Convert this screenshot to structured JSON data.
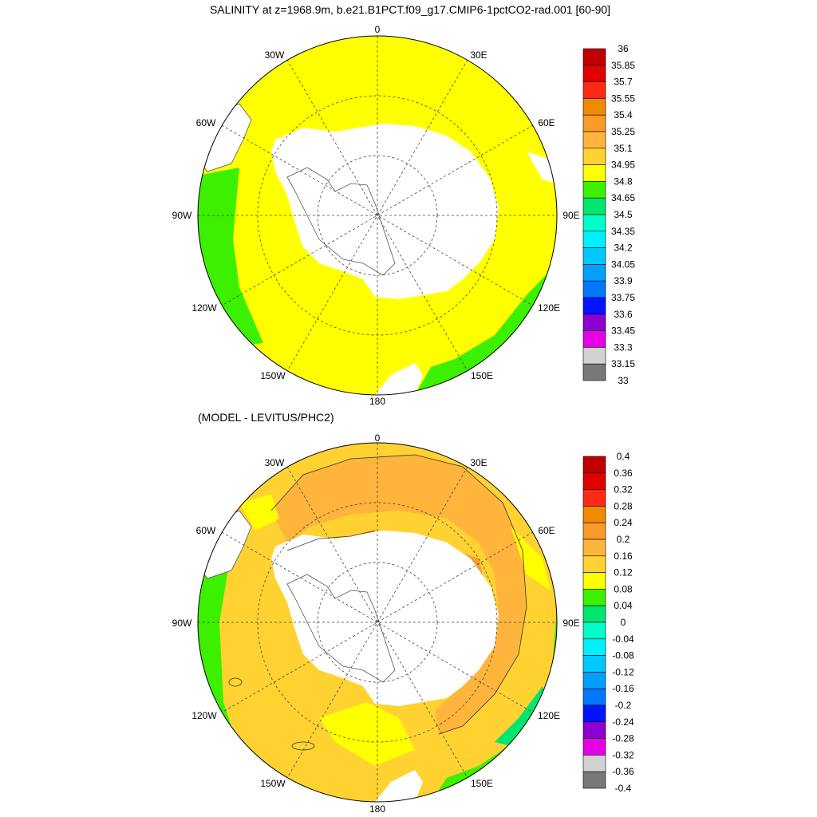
{
  "panels": [
    {
      "id": "salinity",
      "title": "SALINITY at z=1968.9m, b.e21.B1PCT.f09_g17.CMIP6-1pctCO2-rad.001 [60-90]",
      "lon_labels": {
        "n": "0",
        "ne": "30E",
        "e60": "60E",
        "e90": "90E",
        "e120": "120E",
        "e150": "150E",
        "s": "180",
        "w150": "150W",
        "w120": "120W",
        "w90": "90W",
        "w60": "60W",
        "w30": "30W"
      },
      "colorbar": {
        "labels": [
          "36",
          "35.85",
          "35.7",
          "35.55",
          "35.4",
          "35.25",
          "35.1",
          "34.95",
          "34.8",
          "34.65",
          "34.5",
          "34.35",
          "34.2",
          "34.05",
          "33.9",
          "33.75",
          "33.6",
          "33.45",
          "33.3",
          "33.15",
          "33"
        ],
        "colors": [
          "#c00000",
          "#e00000",
          "#ff2a14",
          "#f08a00",
          "#fa9a28",
          "#ffb43c",
          "#ffd232",
          "#ffff00",
          "#3cf000",
          "#00e66e",
          "#00ffc8",
          "#00f0ff",
          "#00c8ff",
          "#00a0ff",
          "#0078ff",
          "#0014ff",
          "#8c00d2",
          "#e600e6",
          "#d2d2d2",
          "#787878"
        ]
      },
      "field": {
        "open_ocean": "#ffff00",
        "margin": "#3cf000",
        "land": "#ffffff"
      }
    },
    {
      "id": "difference",
      "title": "(MODEL - LEVITUS/PHC2)",
      "lon_labels": {
        "n": "0",
        "ne": "30E",
        "e60": "60E",
        "e90": "90E",
        "e120": "120E",
        "e150": "150E",
        "s": "180",
        "w150": "150W",
        "w120": "120W",
        "w90": "90W",
        "w60": "60W",
        "w30": "30W"
      },
      "colorbar": {
        "labels": [
          "0.4",
          "0.36",
          "0.32",
          "0.28",
          "0.24",
          "0.2",
          "0.16",
          "0.12",
          "0.08",
          "0.04",
          "0",
          "-0.04",
          "-0.08",
          "-0.12",
          "-0.16",
          "-0.2",
          "-0.24",
          "-0.28",
          "-0.32",
          "-0.36",
          "-0.4"
        ],
        "colors": [
          "#c00000",
          "#e00000",
          "#ff2a14",
          "#f08a00",
          "#fa9a28",
          "#ffb43c",
          "#ffd232",
          "#ffff00",
          "#3cf000",
          "#00e66e",
          "#00ffc8",
          "#00f0ff",
          "#00c8ff",
          "#00a0ff",
          "#0078ff",
          "#0014ff",
          "#8c00d2",
          "#e600e6",
          "#d2d2d2",
          "#787878"
        ]
      },
      "field": {
        "open_ocean": "#ffd232",
        "inner_ring": "#ffb43c",
        "shelf": "#fa9a28",
        "margin": "#3cf000",
        "land": "#ffffff"
      }
    }
  ]
}
